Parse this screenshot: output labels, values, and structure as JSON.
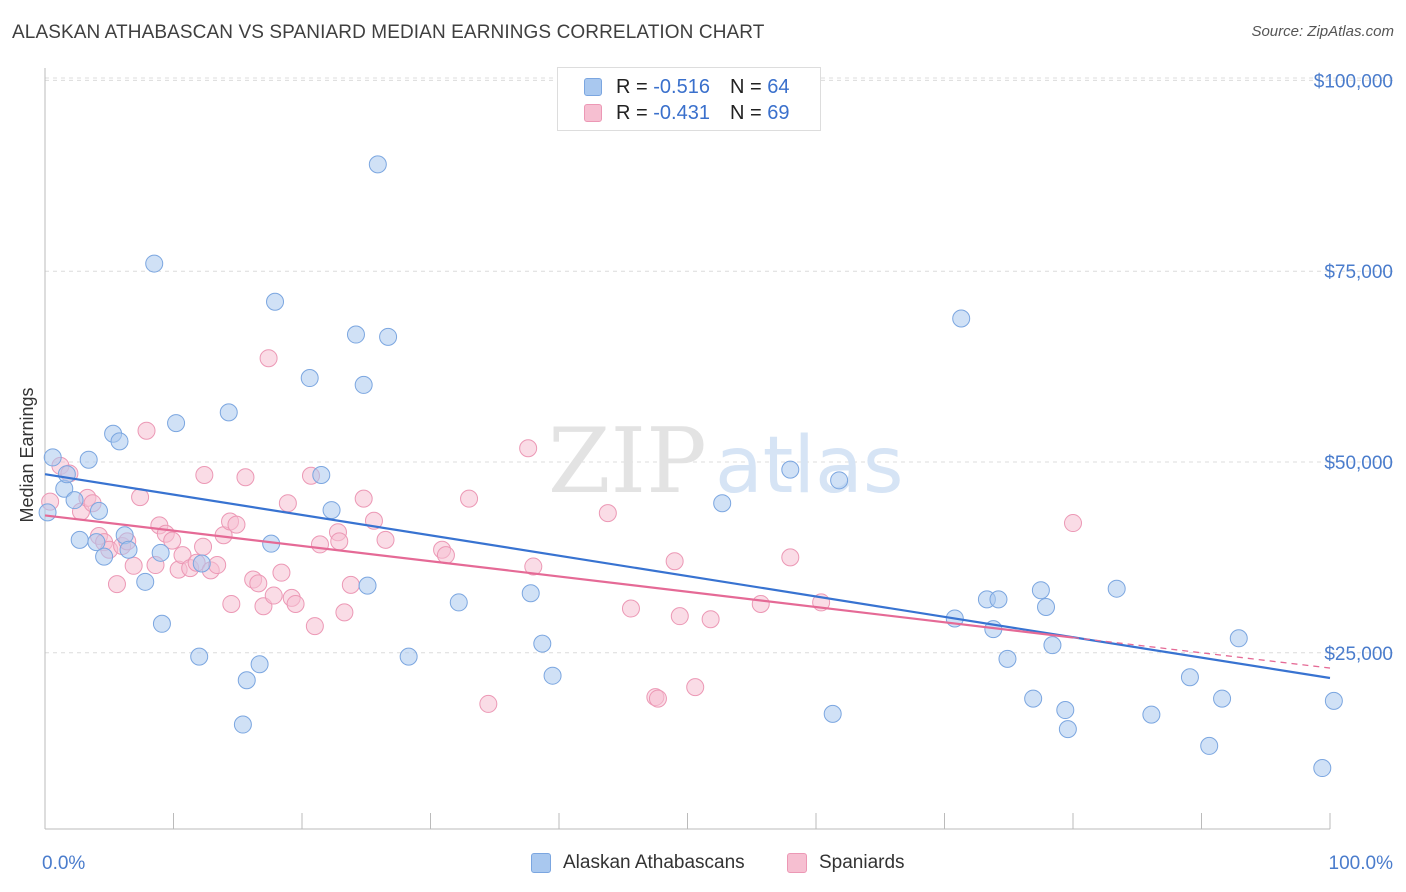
{
  "header": {
    "title": "ALASKAN ATHABASCAN VS SPANIARD MEDIAN EARNINGS CORRELATION CHART",
    "source": "Source: ZipAtlas.com"
  },
  "watermark": {
    "zip": "ZIP",
    "atlas": "atlas"
  },
  "legend": {
    "rows": [
      {
        "r_label": "R =",
        "r_value": "-0.516",
        "n_label": "N =",
        "n_value": "64",
        "color": "#a8c8f0"
      },
      {
        "r_label": "R =",
        "r_value": "-0.431",
        "n_label": "N =",
        "n_value": "69",
        "color": "#f7bcd0"
      }
    ]
  },
  "bottom_legend": {
    "series1": "Alaskan Athabascans",
    "series2": "Spaniards"
  },
  "colors": {
    "blue_fill": "#a9c8ef",
    "blue_stroke": "#7ba6e0",
    "blue_line": "#3873d1",
    "pink_fill": "#f6bfd1",
    "pink_stroke": "#ec98b5",
    "pink_line": "#e56a96",
    "tick_text": "#4a7ccc"
  },
  "chart_data": {
    "type": "scatter",
    "title": "ALASKAN ATHABASCAN VS SPANIARD MEDIAN EARNINGS CORRELATION CHART",
    "xlabel": "",
    "ylabel": "Median Earnings",
    "x_tick_labels": [
      "0.0%",
      "100.0%"
    ],
    "y_tick_labels": [
      "$25,000",
      "$50,000",
      "$75,000",
      "$100,000"
    ],
    "y_ticks": [
      25000,
      50000,
      75000,
      100000
    ],
    "xlim": [
      0,
      100
    ],
    "ylim": [
      2000,
      104000
    ],
    "grid": true,
    "legend_position": "top-center",
    "series": [
      {
        "name": "Alaskan Athabascans",
        "r": -0.516,
        "n": 64,
        "trend": {
          "x": [
            0,
            100
          ],
          "y": [
            48400,
            21700
          ]
        },
        "points": [
          [
            0.2,
            43400
          ],
          [
            0.6,
            50600
          ],
          [
            1.5,
            46500
          ],
          [
            1.7,
            48400
          ],
          [
            2.3,
            45000
          ],
          [
            2.7,
            39800
          ],
          [
            3.4,
            50300
          ],
          [
            4.0,
            39500
          ],
          [
            4.2,
            43600
          ],
          [
            4.6,
            37600
          ],
          [
            5.3,
            53700
          ],
          [
            5.8,
            52700
          ],
          [
            6.2,
            40400
          ],
          [
            6.5,
            38500
          ],
          [
            7.8,
            34300
          ],
          [
            8.5,
            76000
          ],
          [
            9.0,
            38100
          ],
          [
            9.1,
            28800
          ],
          [
            10.2,
            55100
          ],
          [
            12.0,
            24500
          ],
          [
            12.2,
            36700
          ],
          [
            14.3,
            56500
          ],
          [
            15.4,
            15600
          ],
          [
            15.7,
            21400
          ],
          [
            16.7,
            23500
          ],
          [
            17.6,
            39300
          ],
          [
            17.9,
            71000
          ],
          [
            20.6,
            61000
          ],
          [
            21.5,
            48300
          ],
          [
            22.3,
            43700
          ],
          [
            24.2,
            66700
          ],
          [
            24.8,
            60100
          ],
          [
            25.1,
            33800
          ],
          [
            25.9,
            89000
          ],
          [
            26.7,
            66400
          ],
          [
            28.3,
            24500
          ],
          [
            32.2,
            31600
          ],
          [
            37.8,
            32800
          ],
          [
            38.7,
            26200
          ],
          [
            39.5,
            22000
          ],
          [
            52.7,
            44600
          ],
          [
            58.0,
            49000
          ],
          [
            61.3,
            17000
          ],
          [
            61.8,
            47600
          ],
          [
            70.8,
            29500
          ],
          [
            71.3,
            68800
          ],
          [
            73.3,
            32000
          ],
          [
            73.8,
            28100
          ],
          [
            74.2,
            32000
          ],
          [
            74.9,
            24200
          ],
          [
            76.9,
            19000
          ],
          [
            77.5,
            33200
          ],
          [
            77.9,
            31000
          ],
          [
            78.4,
            26000
          ],
          [
            79.4,
            17500
          ],
          [
            79.6,
            15000
          ],
          [
            83.4,
            33400
          ],
          [
            86.1,
            16900
          ],
          [
            89.1,
            21800
          ],
          [
            90.6,
            12800
          ],
          [
            91.6,
            19000
          ],
          [
            92.9,
            26900
          ],
          [
            99.4,
            9900
          ],
          [
            100.3,
            18700
          ]
        ]
      },
      {
        "name": "Spaniards",
        "r": -0.431,
        "n": 69,
        "trend": {
          "x": [
            0,
            80
          ],
          "y": [
            43000,
            27000
          ],
          "dashed_to": {
            "x": 100,
            "y": 23000
          }
        },
        "points": [
          [
            0.4,
            44800
          ],
          [
            1.2,
            49500
          ],
          [
            1.9,
            48500
          ],
          [
            2.8,
            43500
          ],
          [
            3.3,
            45300
          ],
          [
            3.7,
            44600
          ],
          [
            4.2,
            40300
          ],
          [
            4.6,
            39500
          ],
          [
            5.0,
            38500
          ],
          [
            5.6,
            34000
          ],
          [
            6.0,
            39000
          ],
          [
            6.4,
            39600
          ],
          [
            6.9,
            36400
          ],
          [
            7.4,
            45400
          ],
          [
            7.9,
            54100
          ],
          [
            8.6,
            36500
          ],
          [
            8.9,
            41700
          ],
          [
            9.4,
            40600
          ],
          [
            9.9,
            39700
          ],
          [
            10.4,
            35900
          ],
          [
            10.7,
            37800
          ],
          [
            11.3,
            36100
          ],
          [
            11.8,
            36800
          ],
          [
            12.3,
            38900
          ],
          [
            12.4,
            48300
          ],
          [
            12.9,
            35800
          ],
          [
            13.4,
            36500
          ],
          [
            13.9,
            40400
          ],
          [
            14.4,
            42200
          ],
          [
            14.5,
            31400
          ],
          [
            14.9,
            41800
          ],
          [
            15.6,
            48000
          ],
          [
            16.2,
            34600
          ],
          [
            16.6,
            34100
          ],
          [
            17.0,
            31100
          ],
          [
            17.4,
            63600
          ],
          [
            17.8,
            32500
          ],
          [
            18.4,
            35500
          ],
          [
            18.9,
            44600
          ],
          [
            19.2,
            32200
          ],
          [
            19.5,
            31400
          ],
          [
            20.7,
            48200
          ],
          [
            21.0,
            28500
          ],
          [
            21.4,
            39200
          ],
          [
            22.8,
            40800
          ],
          [
            22.9,
            39600
          ],
          [
            23.3,
            30300
          ],
          [
            23.8,
            33900
          ],
          [
            24.8,
            45200
          ],
          [
            25.6,
            42300
          ],
          [
            26.5,
            39800
          ],
          [
            30.9,
            38500
          ],
          [
            31.2,
            37800
          ],
          [
            33.0,
            45200
          ],
          [
            34.5,
            18300
          ],
          [
            37.6,
            51800
          ],
          [
            38.0,
            36300
          ],
          [
            43.8,
            43300
          ],
          [
            45.6,
            30800
          ],
          [
            47.5,
            19200
          ],
          [
            47.7,
            19000
          ],
          [
            49.0,
            37000
          ],
          [
            49.4,
            29800
          ],
          [
            50.6,
            20500
          ],
          [
            51.8,
            29400
          ],
          [
            55.7,
            31400
          ],
          [
            58.0,
            37500
          ],
          [
            60.4,
            31600
          ],
          [
            80.0,
            42000
          ]
        ]
      }
    ]
  }
}
